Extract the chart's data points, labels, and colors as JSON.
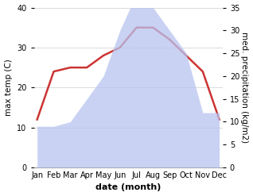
{
  "months": [
    "Jan",
    "Feb",
    "Mar",
    "Apr",
    "May",
    "Jun",
    "Jul",
    "Aug",
    "Sep",
    "Oct",
    "Nov",
    "Dec"
  ],
  "month_indices": [
    0,
    1,
    2,
    3,
    4,
    5,
    6,
    7,
    8,
    9,
    10,
    11
  ],
  "max_temp": [
    12,
    24,
    25,
    25,
    28,
    30,
    35,
    35,
    32,
    28,
    24,
    12
  ],
  "precipitation": [
    9,
    9,
    10,
    15,
    20,
    30,
    38,
    35,
    30,
    25,
    12,
    12
  ],
  "temp_ylim": [
    0,
    40
  ],
  "precip_ylim": [
    0,
    35
  ],
  "temp_yticks": [
    0,
    10,
    20,
    30,
    40
  ],
  "precip_yticks": [
    0,
    5,
    10,
    15,
    20,
    25,
    30,
    35
  ],
  "xlabel": "date (month)",
  "ylabel_left": "max temp (C)",
  "ylabel_right": "med. precipitation (kg/m2)",
  "fill_color": "#b8c4f0",
  "fill_alpha": 0.75,
  "line_color": "#cc3333",
  "line_width": 1.8,
  "bg_color": "#ffffff",
  "grid_color": "#cccccc",
  "tick_fontsize": 7,
  "label_fontsize": 7.5,
  "xlabel_fontsize": 8,
  "xlabel_fontweight": "bold"
}
